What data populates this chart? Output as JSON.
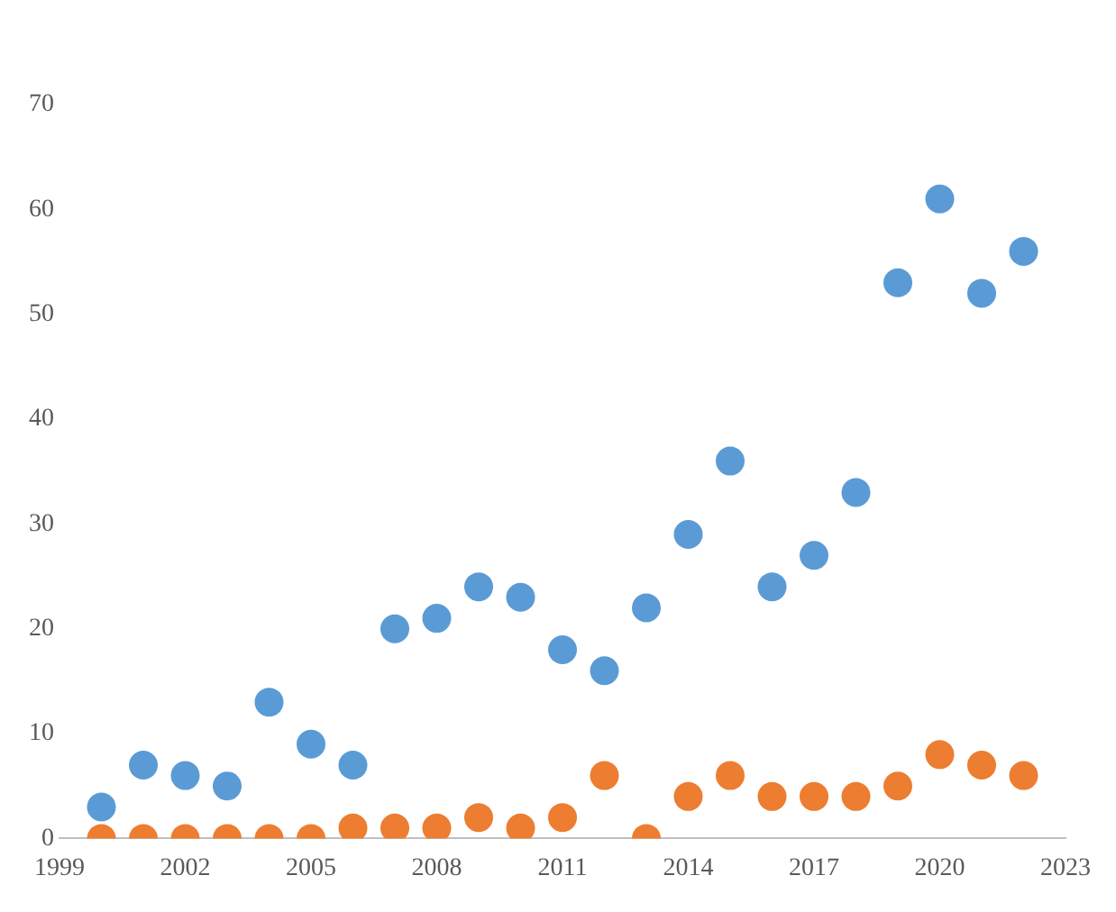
{
  "chart_data": {
    "type": "scatter",
    "marker": "circle",
    "grid": false,
    "legend": false,
    "x": [
      2000,
      2001,
      2002,
      2003,
      2004,
      2005,
      2006,
      2007,
      2008,
      2009,
      2010,
      2011,
      2012,
      2013,
      2014,
      2015,
      2016,
      2017,
      2018,
      2019,
      2020,
      2021,
      2022
    ],
    "series": [
      {
        "color": "#5b9bd5",
        "values": [
          3,
          7,
          6,
          5,
          13,
          9,
          7,
          20,
          21,
          24,
          23,
          18,
          16,
          22,
          29,
          36,
          24,
          27,
          33,
          53,
          61,
          52,
          56
        ]
      },
      {
        "color": "#ed7d31",
        "values": [
          0,
          0,
          0,
          0,
          0,
          0,
          1,
          1,
          1,
          2,
          1,
          2,
          6,
          0,
          4,
          6,
          4,
          4,
          4,
          5,
          8,
          7,
          6
        ]
      }
    ],
    "xlim": [
      1999,
      2023
    ],
    "xticks": [
      1999,
      2002,
      2005,
      2008,
      2011,
      2014,
      2017,
      2020,
      2023
    ],
    "ylim": [
      0,
      70
    ],
    "yticks": [
      0,
      10,
      20,
      30,
      40,
      50,
      60,
      70
    ]
  }
}
